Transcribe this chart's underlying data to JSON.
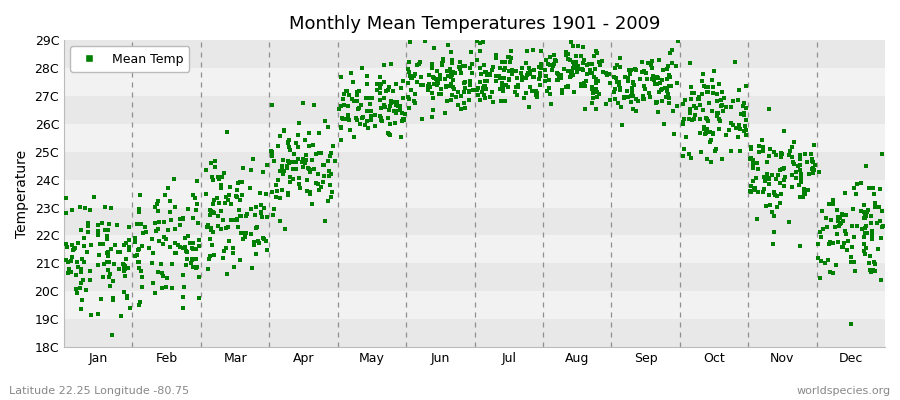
{
  "title": "Monthly Mean Temperatures 1901 - 2009",
  "ylabel": "Temperature",
  "subtitle_left": "Latitude 22.25 Longitude -80.75",
  "subtitle_right": "worldspecies.org",
  "marker_color": "#008000",
  "marker_size": 5,
  "ylim": [
    18,
    29
  ],
  "yticks": [
    18,
    19,
    20,
    21,
    22,
    23,
    24,
    25,
    26,
    27,
    28,
    29
  ],
  "months": [
    "Jan",
    "Feb",
    "Mar",
    "Apr",
    "May",
    "Jun",
    "Jul",
    "Aug",
    "Sep",
    "Oct",
    "Nov",
    "Dec"
  ],
  "monthly_means": [
    21.3,
    21.5,
    22.8,
    24.5,
    26.5,
    27.5,
    27.7,
    27.8,
    27.4,
    26.3,
    24.2,
    22.3
  ],
  "monthly_stds": [
    1.1,
    1.05,
    0.95,
    0.85,
    0.65,
    0.6,
    0.55,
    0.55,
    0.6,
    0.7,
    0.85,
    1.0
  ],
  "n_years": 109,
  "band_colors_even": "#e8e8e8",
  "band_colors_odd": "#f2f2f2",
  "figure_bg": "#ffffff",
  "plot_bg": "#eeeeee"
}
